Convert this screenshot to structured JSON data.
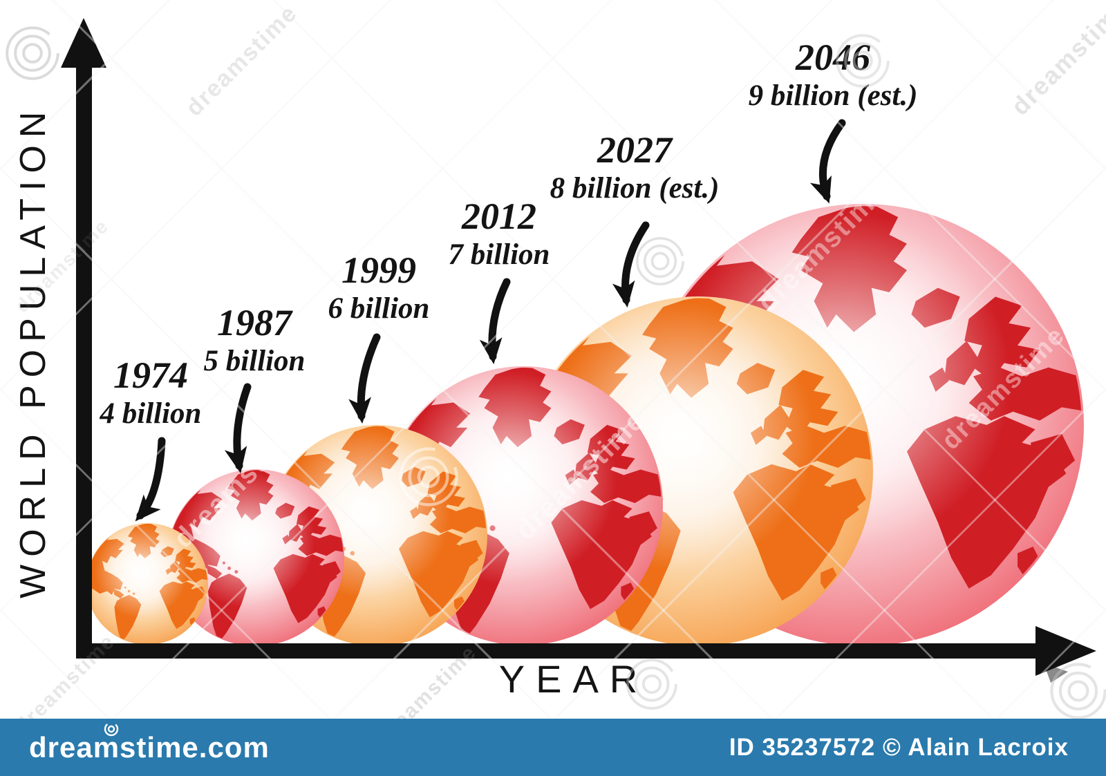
{
  "chart_data": {
    "type": "bubble",
    "xlabel": "YEAR",
    "ylabel": "WORLD POPULATION",
    "description": "World population growth shown as globes of increasing size along a time axis",
    "x_axis_arrow": true,
    "y_axis_arrow": true,
    "points": [
      {
        "year": "1974",
        "label": "4 billion",
        "population_billions": 4,
        "estimated": false,
        "globe_color": "orange"
      },
      {
        "year": "1987",
        "label": "5 billion",
        "population_billions": 5,
        "estimated": false,
        "globe_color": "red"
      },
      {
        "year": "1999",
        "label": "6 billion",
        "population_billions": 6,
        "estimated": false,
        "globe_color": "orange"
      },
      {
        "year": "2012",
        "label": "7 billion",
        "population_billions": 7,
        "estimated": false,
        "globe_color": "red"
      },
      {
        "year": "2027",
        "label": "8 billion (est.)",
        "population_billions": 8,
        "estimated": true,
        "globe_color": "orange"
      },
      {
        "year": "2046",
        "label": "9 billion (est.)",
        "population_billions": 9,
        "estimated": true,
        "globe_color": "red"
      }
    ]
  },
  "watermark": {
    "brand": "dreamstime.com",
    "credit": "ID 35237572 © Alain Lacroix",
    "diagonal_text": "dreamstime",
    "bar_color": "#2a7aad"
  },
  "colors": {
    "axis": "#111111",
    "label_text": "#141414",
    "orange_land": "#ee6f17",
    "orange_rim": "#f08c2d",
    "red_land": "#d01e25",
    "red_rim": "#e64a57"
  }
}
